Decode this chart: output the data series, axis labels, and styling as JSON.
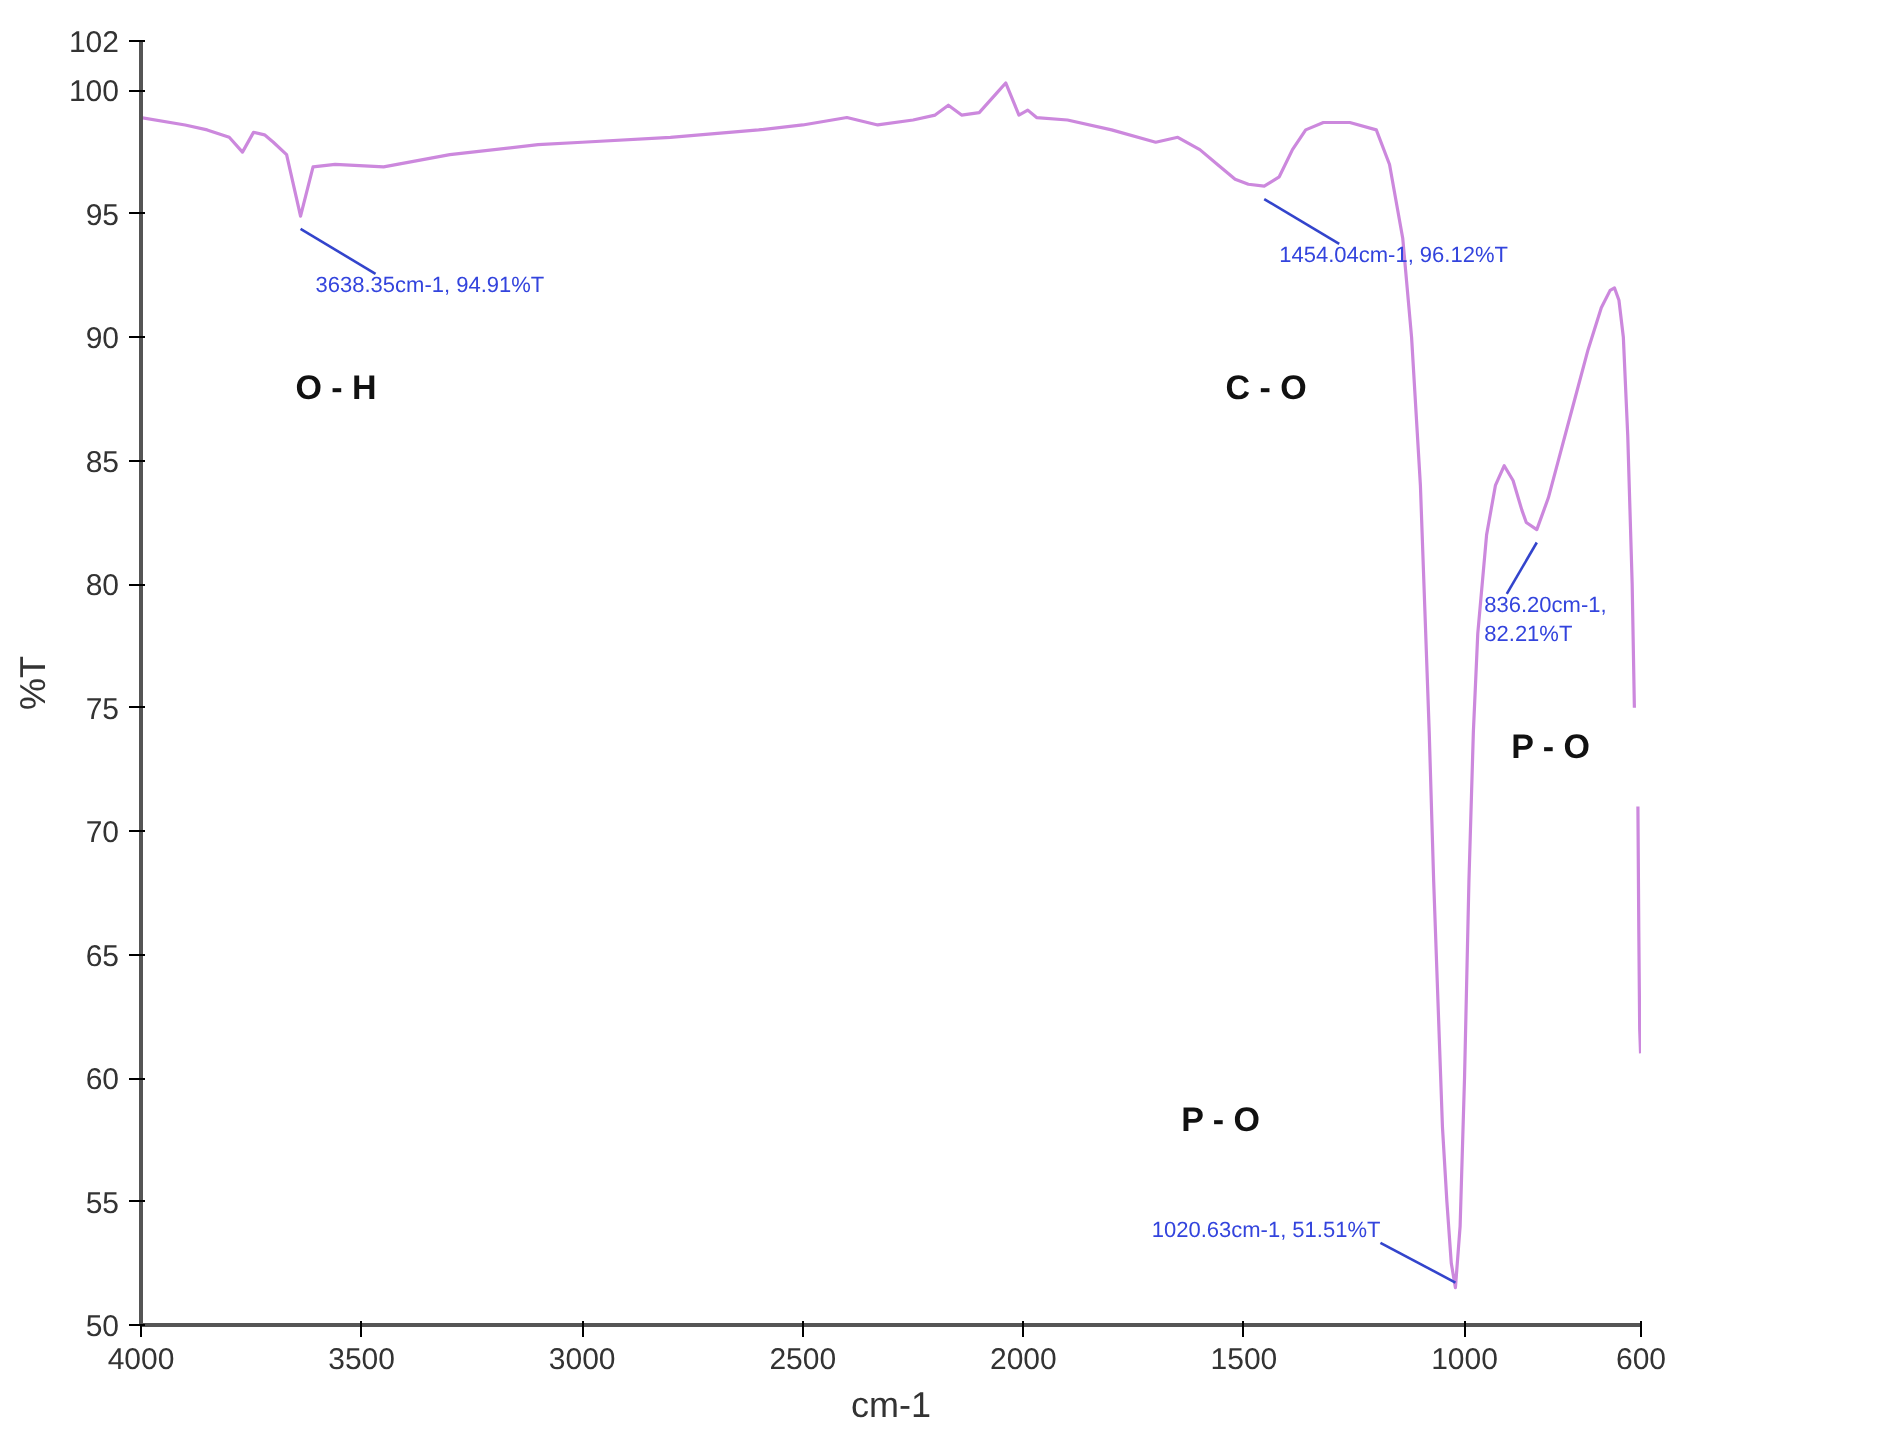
{
  "chart_data": {
    "type": "line",
    "xlabel": "cm-1",
    "ylabel": "%T",
    "xlim": [
      4000,
      600
    ],
    "ylim": [
      50,
      102
    ],
    "xticks": [
      4000,
      3500,
      3000,
      2500,
      2000,
      1500,
      1000,
      600
    ],
    "yticks": [
      50,
      55,
      60,
      65,
      70,
      75,
      80,
      85,
      90,
      95,
      100,
      102
    ],
    "grid": false,
    "marker": "none",
    "line_style": "solid",
    "series": [
      {
        "color": "#cc88dd",
        "x": [
          4000,
          3900,
          3850,
          3800,
          3770,
          3745,
          3720,
          3700,
          3670,
          3638.35,
          3610,
          3560,
          3450,
          3300,
          3100,
          3000,
          2800,
          2600,
          2500,
          2400,
          2330,
          2250,
          2200,
          2170,
          2140,
          2100,
          2060,
          2040,
          2010,
          1990,
          1970,
          1900,
          1800,
          1700,
          1650,
          1600,
          1560,
          1520,
          1490,
          1454.04,
          1420,
          1390,
          1360,
          1320,
          1260,
          1200,
          1170,
          1140,
          1120,
          1100,
          1090,
          1080,
          1070,
          1060,
          1050,
          1040,
          1030,
          1020.63,
          1010,
          1000,
          990,
          980,
          970,
          950,
          930,
          910,
          890,
          870,
          860,
          836.2,
          810,
          780,
          750,
          720,
          690,
          670,
          660,
          650,
          640,
          630,
          620,
          615,
          610,
          607,
          605,
          603,
          601
        ],
        "values": [
          98.9,
          98.6,
          98.4,
          98.1,
          97.5,
          98.3,
          98.2,
          97.9,
          97.4,
          94.91,
          96.9,
          97.0,
          96.9,
          97.4,
          97.8,
          97.9,
          98.1,
          98.4,
          98.6,
          98.9,
          98.6,
          98.8,
          99.0,
          99.4,
          99.0,
          99.1,
          99.9,
          100.3,
          99.0,
          99.2,
          98.9,
          98.8,
          98.4,
          97.9,
          98.1,
          97.6,
          97.0,
          96.4,
          96.2,
          96.12,
          96.5,
          97.6,
          98.4,
          98.7,
          98.7,
          98.4,
          97.0,
          94.0,
          90.0,
          84.0,
          79.0,
          74.0,
          68.0,
          63.0,
          58.0,
          55.0,
          52.5,
          51.51,
          54.0,
          60.0,
          68.0,
          74.0,
          78.0,
          82.0,
          84.0,
          84.8,
          84.2,
          83.0,
          82.5,
          82.21,
          83.5,
          85.5,
          87.5,
          89.5,
          91.2,
          91.9,
          92.0,
          91.5,
          90.0,
          86.0,
          80.0,
          75.0,
          null,
          71.0,
          66.0,
          62.0,
          61.0
        ]
      }
    ],
    "annotations": [
      {
        "text": "3638.35cm-1, 94.91%T",
        "x": 3638.35,
        "y": 94.91
      },
      {
        "text": "1454.04cm-1, 96.12%T",
        "x": 1454.04,
        "y": 96.12
      },
      {
        "text": "836.20cm-1, 82.21%T",
        "x": 836.2,
        "y": 82.21
      },
      {
        "text": "1020.63cm-1, 51.51%T",
        "x": 1020.63,
        "y": 51.51
      },
      "O - H",
      "C - O",
      "P - O",
      "P - O"
    ]
  }
}
